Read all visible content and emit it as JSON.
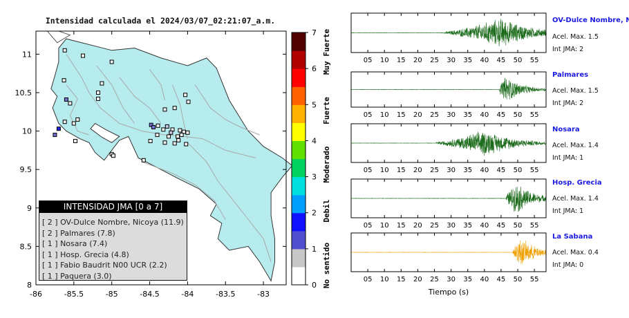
{
  "title": "Intensidad calculada el 2024/03/07_02:21:07_a.m.",
  "legend": {
    "title": "INTENSIDAD JMA [0 a 7]",
    "entries": [
      "[ 2 ] OV-Dulce Nombre, Nicoya (11.9)",
      "[ 2 ] Palmares (7.8)",
      "[ 1 ] Nosara (7.4)",
      "[ 1 ] Hosp. Grecia (4.8)",
      "[ 1 ] Fabio Baudrit N00 UCR (2.2)",
      "[ 1 ] Paquera (3.0)"
    ]
  },
  "colorbar": {
    "ticks": [
      "0",
      "1",
      "2",
      "3",
      "4",
      "5",
      "6",
      "7"
    ],
    "labels": [
      "No sentido",
      "Debil",
      "Moderado",
      "Fuerte",
      "Muy Fuerte"
    ],
    "colors": [
      "#ffffff",
      "#c8c8c8",
      "#5050d0",
      "#1010ff",
      "#00a0ff",
      "#00e0e0",
      "#00d060",
      "#60e000",
      "#ffff00",
      "#ffb000",
      "#ff6000",
      "#ff0000",
      "#b00000",
      "#500000"
    ]
  },
  "map_axes": {
    "xticks": [
      "-86",
      "-85.5",
      "-85",
      "-84.5",
      "-84",
      "-83.5",
      "-83"
    ],
    "yticks": [
      "8",
      "8.5",
      "9",
      "9.5",
      "10",
      "10.5",
      "11"
    ]
  },
  "colors": {
    "land": "#b7ecee",
    "wave_green": "#1a6a1a",
    "wave_orange": "#f0a000",
    "station_name": "#1a1ae0"
  },
  "waveforms": {
    "xlabel": "Tiempo (s)",
    "xticks": [
      "05",
      "10",
      "15",
      "20",
      "25",
      "30",
      "35",
      "40",
      "45",
      "50",
      "55"
    ],
    "stations": [
      {
        "name": "OV-Dulce Nombre, Nicoya",
        "accel": "Acel. Max. 1.5",
        "int": "Int JMA: 2"
      },
      {
        "name": "Palmares",
        "accel": "Acel. Max. 1.5",
        "int": "Int JMA: 2"
      },
      {
        "name": "Nosara",
        "accel": "Acel. Max. 1.4",
        "int": "Int JMA: 1"
      },
      {
        "name": "Hosp. Grecia",
        "accel": "Acel. Max. 1.4",
        "int": "Int JMA: 1"
      },
      {
        "name": "La Sabana",
        "accel": "Acel. Max. 0.4",
        "int": "Int JMA: 0"
      }
    ]
  },
  "chart_data": {
    "type": "scatter",
    "title": "Intensidad calculada el 2024/03/07_02:21:07_a.m.",
    "xlim": [
      -86,
      -82.7
    ],
    "ylim": [
      8,
      11.3
    ],
    "points": [
      {
        "x": -85.62,
        "y": 11.05,
        "i": 0
      },
      {
        "x": -85.38,
        "y": 10.98,
        "i": 0
      },
      {
        "x": -85.0,
        "y": 10.9,
        "i": 0
      },
      {
        "x": -85.63,
        "y": 10.66,
        "i": 0
      },
      {
        "x": -85.13,
        "y": 10.62,
        "i": 0
      },
      {
        "x": -85.18,
        "y": 10.5,
        "i": 0
      },
      {
        "x": -85.6,
        "y": 10.41,
        "i": 2
      },
      {
        "x": -85.55,
        "y": 10.36,
        "i": 0
      },
      {
        "x": -85.18,
        "y": 10.42,
        "i": 0
      },
      {
        "x": -85.45,
        "y": 10.15,
        "i": 0
      },
      {
        "x": -85.5,
        "y": 10.1,
        "i": 0
      },
      {
        "x": -85.62,
        "y": 10.12,
        "i": 0
      },
      {
        "x": -85.7,
        "y": 10.03,
        "i": 3
      },
      {
        "x": -85.75,
        "y": 9.95,
        "i": 2
      },
      {
        "x": -85.48,
        "y": 9.87,
        "i": 0
      },
      {
        "x": -85.0,
        "y": 9.7,
        "i": 0
      },
      {
        "x": -84.98,
        "y": 9.68,
        "i": 0
      },
      {
        "x": -84.58,
        "y": 9.62,
        "i": 0
      },
      {
        "x": -84.03,
        "y": 10.47,
        "i": 0
      },
      {
        "x": -83.99,
        "y": 10.38,
        "i": 0
      },
      {
        "x": -84.17,
        "y": 10.3,
        "i": 0
      },
      {
        "x": -84.3,
        "y": 10.28,
        "i": 0
      },
      {
        "x": -84.48,
        "y": 10.08,
        "i": 2
      },
      {
        "x": -84.45,
        "y": 10.05,
        "i": 2
      },
      {
        "x": -84.39,
        "y": 10.07,
        "i": 0
      },
      {
        "x": -84.27,
        "y": 10.06,
        "i": 1
      },
      {
        "x": -84.2,
        "y": 10.02,
        "i": 0
      },
      {
        "x": -84.1,
        "y": 10.01,
        "i": 0
      },
      {
        "x": -84.05,
        "y": 9.99,
        "i": 0
      },
      {
        "x": -84.0,
        "y": 9.98,
        "i": 0
      },
      {
        "x": -84.32,
        "y": 10.02,
        "i": 0
      },
      {
        "x": -84.4,
        "y": 9.95,
        "i": 0
      },
      {
        "x": -84.25,
        "y": 9.93,
        "i": 0
      },
      {
        "x": -84.13,
        "y": 9.93,
        "i": 0
      },
      {
        "x": -84.08,
        "y": 9.95,
        "i": 0
      },
      {
        "x": -84.49,
        "y": 9.87,
        "i": 0
      },
      {
        "x": -84.3,
        "y": 9.85,
        "i": 0
      },
      {
        "x": -84.17,
        "y": 9.84,
        "i": 0
      },
      {
        "x": -84.02,
        "y": 9.83,
        "i": 0
      },
      {
        "x": -84.12,
        "y": 9.88,
        "i": 0
      },
      {
        "x": -84.22,
        "y": 9.98,
        "i": 1
      }
    ]
  }
}
